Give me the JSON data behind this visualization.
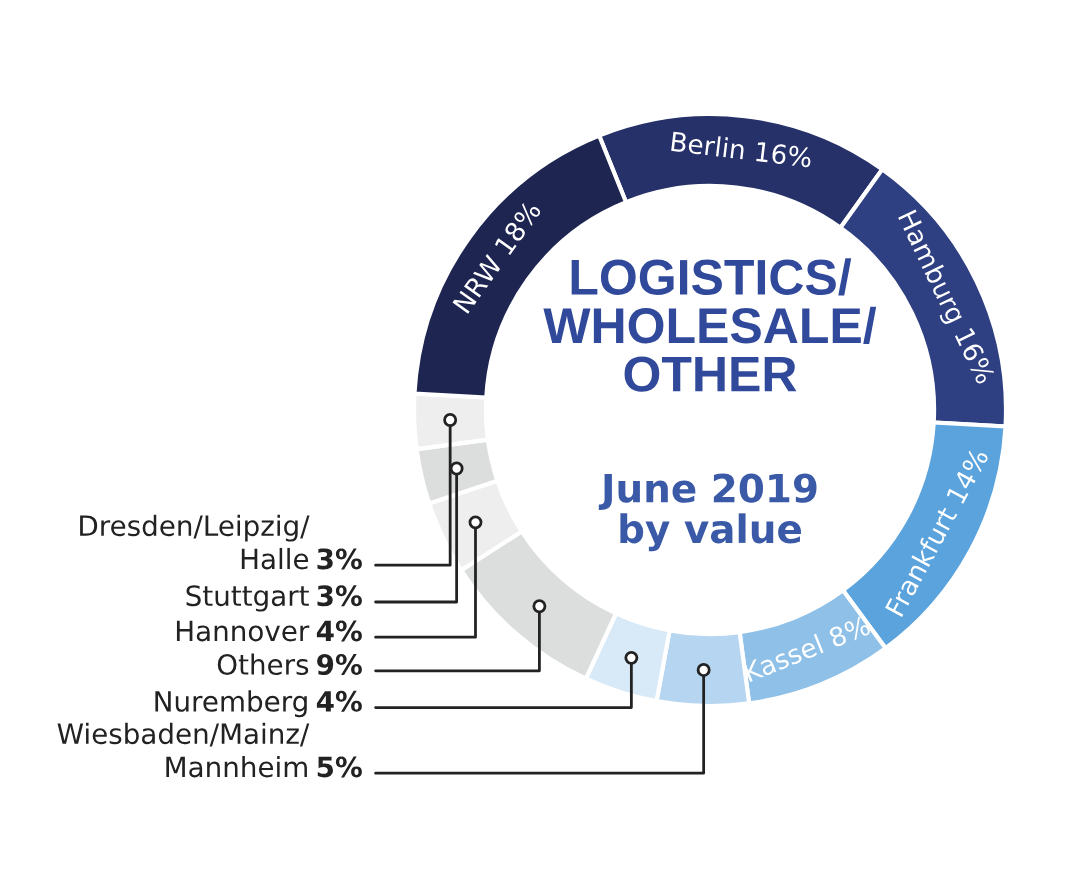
{
  "chart_data": {
    "type": "donut",
    "title": "LOGISTICS/\nWHOLESALE/\nOTHER",
    "subtitle": "June 2019\nby value",
    "categories": [
      "Berlin",
      "Hamburg",
      "Frankfurt",
      "Kassel",
      "Wiesbaden/Mainz/\nMannheim",
      "Nuremberg",
      "Others",
      "Hannover",
      "Stuttgart",
      "Dresden/Leipzig/\nHalle",
      "NRW"
    ],
    "values": [
      16,
      16,
      14,
      8,
      5,
      4,
      9,
      4,
      3,
      3,
      18
    ],
    "value_labels": [
      "16%",
      "16%",
      "14%",
      "8%",
      "5%",
      "4%",
      "9%",
      "4%",
      "3%",
      "3%",
      "18%"
    ],
    "colors": [
      "#263069",
      "#2e3f82",
      "#5ba3dc",
      "#8fc0e8",
      "#b5d5f0",
      "#d8e9f7",
      "#dcdddd",
      "#eeeeee",
      "#dcdddd",
      "#eeeeee",
      "#1e2550"
    ]
  }
}
